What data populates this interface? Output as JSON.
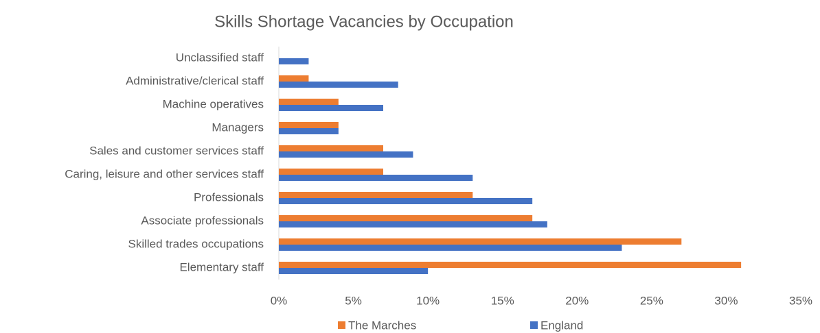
{
  "chart_data": {
    "type": "bar",
    "orientation": "horizontal",
    "title": "Skills Shortage Vacancies by Occupation",
    "categories": [
      "Unclassified staff",
      "Administrative/clerical staff",
      "Machine operatives",
      "Managers",
      "Sales and customer services staff",
      "Caring, leisure and other services staff",
      "Professionals",
      "Associate professionals",
      "Skilled trades occupations",
      "Elementary staff"
    ],
    "series": [
      {
        "name": "The Marches",
        "color": "#ed7d31",
        "values": [
          0,
          2,
          4,
          4,
          7,
          7,
          13,
          17,
          27,
          31
        ]
      },
      {
        "name": "England",
        "color": "#4472c4",
        "values": [
          2,
          8,
          7,
          4,
          9,
          13,
          17,
          18,
          23,
          10
        ]
      }
    ],
    "xlim": [
      0,
      35
    ],
    "xticks": [
      {
        "value": 0,
        "label": "0%"
      },
      {
        "value": 5,
        "label": "5%"
      },
      {
        "value": 10,
        "label": "10%"
      },
      {
        "value": 15,
        "label": "15%"
      },
      {
        "value": 20,
        "label": "20%"
      },
      {
        "value": 25,
        "label": "25%"
      },
      {
        "value": 30,
        "label": "30%"
      },
      {
        "value": 35,
        "label": "35%"
      }
    ],
    "legend": "bottom",
    "grid": false
  }
}
